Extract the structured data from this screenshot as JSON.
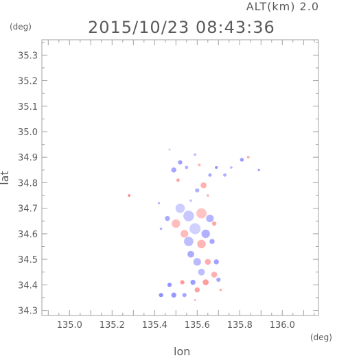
{
  "header": {
    "altitude_label": "ALT(km) 2.0",
    "datetime": "2015/10/23 08:43:36"
  },
  "axes": {
    "x_label": "lon",
    "y_label": "lat",
    "x_unit": "(deg)",
    "y_unit": "(deg)",
    "x_range": [
      134.87,
      136.17
    ],
    "y_range": [
      34.28,
      35.36
    ],
    "x_ticks": [
      135.0,
      135.2,
      135.4,
      135.6,
      135.8,
      136.0
    ],
    "x_tick_labels": [
      "135.0",
      "135.2",
      "135.4",
      "135.6",
      "135.8",
      "136.0"
    ],
    "y_ticks": [
      34.3,
      34.4,
      34.5,
      34.6,
      34.7,
      34.8,
      34.9,
      35.0,
      35.1,
      35.2,
      35.3
    ],
    "y_tick_labels": [
      "34.3",
      "34.4",
      "34.5",
      "34.6",
      "34.7",
      "34.8",
      "34.9",
      "35.0",
      "35.1",
      "35.2",
      "35.3"
    ]
  },
  "colors": {
    "frame": "#a0a0a0",
    "text": "#5a5a5a",
    "approaching": "#6b6bff",
    "receding": "#ff6b6b",
    "weak": "#c8c8f0"
  },
  "chart_data": {
    "type": "scatter",
    "description_encoding": "Doppler velocity patches: blue negative, red positive",
    "patches": [
      {
        "lon": 135.28,
        "lat": 34.75,
        "r": 0.006,
        "v": 1
      },
      {
        "lon": 135.47,
        "lat": 34.93,
        "r": 0.004,
        "v": -0.3
      },
      {
        "lon": 135.52,
        "lat": 34.88,
        "r": 0.01,
        "v": -0.7
      },
      {
        "lon": 135.49,
        "lat": 34.85,
        "r": 0.012,
        "v": -0.6
      },
      {
        "lon": 135.51,
        "lat": 34.81,
        "r": 0.008,
        "v": 0.6
      },
      {
        "lon": 135.55,
        "lat": 34.86,
        "r": 0.008,
        "v": -0.5
      },
      {
        "lon": 135.59,
        "lat": 34.91,
        "r": 0.006,
        "v": -0.4
      },
      {
        "lon": 135.61,
        "lat": 34.87,
        "r": 0.007,
        "v": 0.4
      },
      {
        "lon": 135.63,
        "lat": 34.79,
        "r": 0.014,
        "v": 0.5
      },
      {
        "lon": 135.6,
        "lat": 34.77,
        "r": 0.01,
        "v": -0.5
      },
      {
        "lon": 135.66,
        "lat": 34.83,
        "r": 0.008,
        "v": -0.6
      },
      {
        "lon": 135.69,
        "lat": 34.86,
        "r": 0.007,
        "v": -0.8
      },
      {
        "lon": 135.73,
        "lat": 34.83,
        "r": 0.008,
        "v": -0.5
      },
      {
        "lon": 135.76,
        "lat": 34.86,
        "r": 0.006,
        "v": -0.4
      },
      {
        "lon": 135.81,
        "lat": 34.89,
        "r": 0.009,
        "v": -0.7
      },
      {
        "lon": 135.84,
        "lat": 34.9,
        "r": 0.006,
        "v": 0.6
      },
      {
        "lon": 135.89,
        "lat": 34.85,
        "r": 0.005,
        "v": -0.8
      },
      {
        "lon": 135.65,
        "lat": 34.75,
        "r": 0.006,
        "v": 0.5
      },
      {
        "lon": 135.57,
        "lat": 34.73,
        "r": 0.006,
        "v": -0.3
      },
      {
        "lon": 135.42,
        "lat": 34.72,
        "r": 0.004,
        "v": -0.6
      },
      {
        "lon": 135.52,
        "lat": 34.7,
        "r": 0.022,
        "v": -0.2
      },
      {
        "lon": 135.56,
        "lat": 34.67,
        "r": 0.025,
        "v": -0.25
      },
      {
        "lon": 135.62,
        "lat": 34.68,
        "r": 0.024,
        "v": 0.3
      },
      {
        "lon": 135.66,
        "lat": 34.66,
        "r": 0.018,
        "v": -0.45
      },
      {
        "lon": 135.5,
        "lat": 34.64,
        "r": 0.02,
        "v": 0.35
      },
      {
        "lon": 135.46,
        "lat": 34.66,
        "r": 0.012,
        "v": -0.55
      },
      {
        "lon": 135.59,
        "lat": 34.62,
        "r": 0.026,
        "v": -0.15
      },
      {
        "lon": 135.64,
        "lat": 34.6,
        "r": 0.02,
        "v": -0.5
      },
      {
        "lon": 135.54,
        "lat": 34.6,
        "r": 0.018,
        "v": 0.4
      },
      {
        "lon": 135.56,
        "lat": 34.57,
        "r": 0.022,
        "v": -0.35
      },
      {
        "lon": 135.62,
        "lat": 34.56,
        "r": 0.02,
        "v": 0.45
      },
      {
        "lon": 135.67,
        "lat": 34.57,
        "r": 0.012,
        "v": -0.6
      },
      {
        "lon": 135.43,
        "lat": 34.62,
        "r": 0.006,
        "v": -0.5
      },
      {
        "lon": 135.68,
        "lat": 34.64,
        "r": 0.01,
        "v": 0.6
      },
      {
        "lon": 135.57,
        "lat": 34.52,
        "r": 0.016,
        "v": -0.55
      },
      {
        "lon": 135.6,
        "lat": 34.49,
        "r": 0.018,
        "v": -0.4
      },
      {
        "lon": 135.65,
        "lat": 34.49,
        "r": 0.014,
        "v": 0.55
      },
      {
        "lon": 135.69,
        "lat": 34.49,
        "r": 0.012,
        "v": -0.65
      },
      {
        "lon": 135.62,
        "lat": 34.45,
        "r": 0.016,
        "v": -0.35
      },
      {
        "lon": 135.68,
        "lat": 34.44,
        "r": 0.014,
        "v": 0.5
      },
      {
        "lon": 135.64,
        "lat": 34.41,
        "r": 0.014,
        "v": 0.7
      },
      {
        "lon": 135.7,
        "lat": 34.42,
        "r": 0.01,
        "v": -0.6
      },
      {
        "lon": 135.58,
        "lat": 34.41,
        "r": 0.012,
        "v": -0.7
      },
      {
        "lon": 135.53,
        "lat": 34.41,
        "r": 0.01,
        "v": 0.75
      },
      {
        "lon": 135.6,
        "lat": 34.38,
        "r": 0.012,
        "v": 0.65
      },
      {
        "lon": 135.47,
        "lat": 34.4,
        "r": 0.01,
        "v": -0.8
      },
      {
        "lon": 135.49,
        "lat": 34.36,
        "r": 0.012,
        "v": -0.75
      },
      {
        "lon": 135.43,
        "lat": 34.36,
        "r": 0.01,
        "v": -0.85
      },
      {
        "lon": 135.54,
        "lat": 34.36,
        "r": 0.01,
        "v": -0.6
      },
      {
        "lon": 135.71,
        "lat": 34.38,
        "r": 0.006,
        "v": 0.5
      },
      {
        "lon": 135.59,
        "lat": 34.34,
        "r": 0.005,
        "v": 0.4
      }
    ]
  }
}
